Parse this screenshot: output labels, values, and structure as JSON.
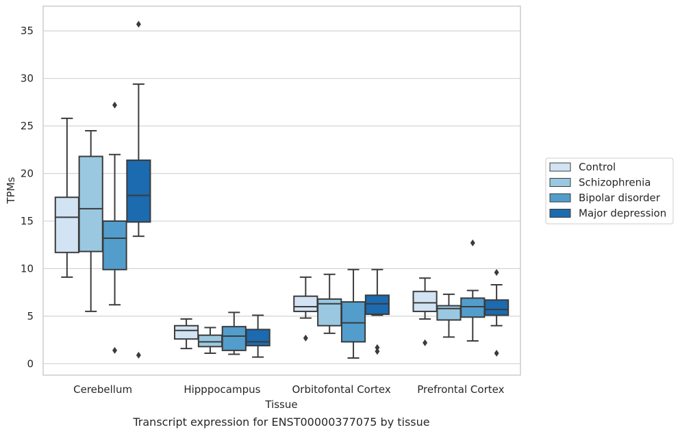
{
  "caption": "Transcript expression for ENST00000377075 by tissue",
  "chart_data": {
    "type": "boxplot",
    "xlabel": "Tissue",
    "ylabel": "TPMs",
    "ylim": [
      -1.2,
      37.6
    ],
    "yticks": [
      0,
      5,
      10,
      15,
      20,
      25,
      30,
      35
    ],
    "grid": true,
    "legend_placement": "right",
    "categories": [
      "Cerebellum",
      "Hipppocampus",
      "Orbitofontal Cortex",
      "Prefrontal Cortex"
    ],
    "series": [
      {
        "name": "Control",
        "color": "#d2e3f3",
        "boxes": [
          {
            "whislo": 9.1,
            "q1": 11.7,
            "med": 15.4,
            "q3": 17.5,
            "whishi": 25.8,
            "fliers": []
          },
          {
            "whislo": 1.6,
            "q1": 2.6,
            "med": 3.5,
            "q3": 4.0,
            "whishi": 4.7,
            "fliers": []
          },
          {
            "whislo": 4.8,
            "q1": 5.5,
            "med": 6.0,
            "q3": 7.1,
            "whishi": 9.1,
            "fliers": [
              2.7
            ]
          },
          {
            "whislo": 4.7,
            "q1": 5.5,
            "med": 6.4,
            "q3": 7.6,
            "whishi": 9.0,
            "fliers": [
              2.2
            ]
          }
        ]
      },
      {
        "name": "Schizophrenia",
        "color": "#9ac8e0",
        "boxes": [
          {
            "whislo": 5.5,
            "q1": 11.8,
            "med": 16.3,
            "q3": 21.8,
            "whishi": 24.5,
            "fliers": []
          },
          {
            "whislo": 1.1,
            "q1": 1.8,
            "med": 2.3,
            "q3": 3.0,
            "whishi": 3.8,
            "fliers": []
          },
          {
            "whislo": 3.2,
            "q1": 4.0,
            "med": 6.3,
            "q3": 6.8,
            "whishi": 9.4,
            "fliers": []
          },
          {
            "whislo": 2.8,
            "q1": 4.6,
            "med": 5.8,
            "q3": 6.1,
            "whishi": 7.3,
            "fliers": []
          }
        ]
      },
      {
        "name": "Bipolar disorder",
        "color": "#529dcc",
        "boxes": [
          {
            "whislo": 6.2,
            "q1": 9.9,
            "med": 13.2,
            "q3": 15.0,
            "whishi": 22.0,
            "fliers": [
              27.2,
              1.4
            ]
          },
          {
            "whislo": 1.0,
            "q1": 1.4,
            "med": 2.9,
            "q3": 3.9,
            "whishi": 5.4,
            "fliers": []
          },
          {
            "whislo": 0.6,
            "q1": 2.3,
            "med": 4.3,
            "q3": 6.5,
            "whishi": 9.9,
            "fliers": []
          },
          {
            "whislo": 2.4,
            "q1": 4.9,
            "med": 6.0,
            "q3": 6.9,
            "whishi": 7.7,
            "fliers": [
              12.7
            ]
          }
        ]
      },
      {
        "name": "Major depression",
        "color": "#1c6aaf",
        "boxes": [
          {
            "whislo": 13.4,
            "q1": 14.9,
            "med": 17.7,
            "q3": 21.4,
            "whishi": 29.4,
            "fliers": [
              35.7,
              0.9
            ]
          },
          {
            "whislo": 0.7,
            "q1": 1.9,
            "med": 2.3,
            "q3": 3.6,
            "whishi": 5.1,
            "fliers": []
          },
          {
            "whislo": 5.1,
            "q1": 5.2,
            "med": 6.3,
            "q3": 7.2,
            "whishi": 9.9,
            "fliers": [
              1.7,
              1.3
            ]
          },
          {
            "whislo": 4.0,
            "q1": 5.1,
            "med": 5.7,
            "q3": 6.7,
            "whishi": 8.3,
            "fliers": [
              9.6,
              1.1
            ]
          }
        ]
      }
    ]
  }
}
